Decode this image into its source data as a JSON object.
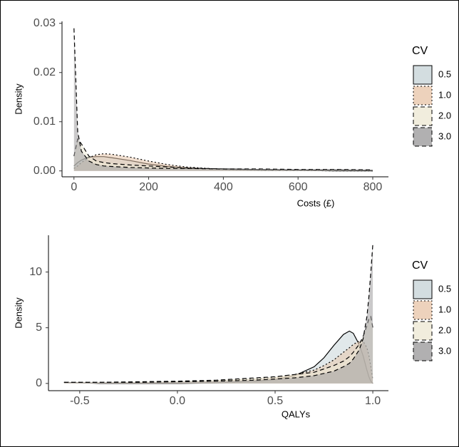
{
  "chart_data": [
    {
      "type": "density",
      "x_label": "Costs (£)",
      "y_label": "Density",
      "legend_title": "CV",
      "x": [
        0,
        10,
        20,
        40,
        60,
        80,
        100,
        150,
        200,
        250,
        300,
        400,
        500,
        600,
        700,
        800
      ],
      "series": [
        {
          "name": "0.5",
          "color": "#c8d5d8",
          "dash": "solid",
          "values": [
            0.001,
            0.0017,
            0.0022,
            0.0028,
            0.0029,
            0.0029,
            0.0027,
            0.0021,
            0.0014,
            0.0009,
            0.0006,
            0.0003,
            0.0001,
            0.0001,
            0,
            0
          ]
        },
        {
          "name": "1.0",
          "color": "#e8c7ab",
          "dash": "dotted",
          "values": [
            0.0005,
            0.001,
            0.0017,
            0.0027,
            0.0033,
            0.0035,
            0.0034,
            0.0028,
            0.002,
            0.0013,
            0.0008,
            0.0003,
            0.0001,
            0.0001,
            0,
            0
          ]
        },
        {
          "name": "2.0",
          "color": "#ede9d5",
          "dash": "dashed",
          "values": [
            0.003,
            0.0065,
            0.0055,
            0.003,
            0.002,
            0.0017,
            0.0015,
            0.0012,
            0.001,
            0.0008,
            0.0006,
            0.0004,
            0.0003,
            0.0002,
            0.0002,
            0.0001
          ]
        },
        {
          "name": "3.0",
          "color": "#9e9c9e",
          "dash": "dashed",
          "values": [
            0.029,
            0.008,
            0.004,
            0.002,
            0.0013,
            0.001,
            0.0009,
            0.0007,
            0.0006,
            0.0005,
            0.0005,
            0.0004,
            0.0004,
            0.0003,
            0.0003,
            0.0002
          ]
        }
      ],
      "xlim": [
        -32,
        842
      ],
      "xticks": [
        0,
        200,
        400,
        600,
        800
      ],
      "ylim": [
        -0.0012,
        0.0304
      ],
      "yticks": [
        {
          "value": 0,
          "label": "0.00"
        },
        0.01,
        0.02,
        0.03
      ]
    },
    {
      "type": "density",
      "x_label": "QALYs",
      "y_label": "Density",
      "legend_title": "CV",
      "x": [
        -0.58,
        -0.4,
        -0.2,
        0,
        0.2,
        0.4,
        0.5,
        0.6,
        0.7,
        0.75,
        0.8,
        0.85,
        0.88,
        0.9,
        0.93,
        0.95,
        0.97,
        0.98,
        0.99,
        1.0
      ],
      "series": [
        {
          "name": "0.5",
          "color": "#c8d5d8",
          "dash": "solid",
          "values": [
            0.1,
            0,
            0,
            0,
            0.05,
            0.2,
            0.35,
            0.7,
            1.5,
            2.3,
            3.4,
            4.4,
            4.7,
            4.5,
            3.5,
            2.5,
            1.2,
            0.6,
            0.2,
            0
          ]
        },
        {
          "name": "1.0",
          "color": "#e8c7ab",
          "dash": "dotted",
          "values": [
            0.1,
            0.1,
            0.1,
            0.15,
            0.25,
            0.4,
            0.55,
            0.8,
            1.2,
            1.6,
            2.1,
            2.8,
            3.2,
            3.5,
            3.8,
            3.8,
            3.2,
            2.5,
            1.5,
            0.3
          ]
        },
        {
          "name": "2.0",
          "color": "#ede9d5",
          "dash": "dashed",
          "values": [
            0.1,
            0.1,
            0.15,
            0.2,
            0.3,
            0.5,
            0.6,
            0.8,
            1.0,
            1.3,
            1.6,
            2.0,
            2.4,
            2.8,
            3.5,
            4.2,
            5.2,
            5.8,
            6.0,
            5.0
          ]
        },
        {
          "name": "3.0",
          "color": "#9e9c9e",
          "dash": "dashed",
          "values": [
            0.1,
            0.1,
            0.1,
            0.15,
            0.2,
            0.3,
            0.4,
            0.5,
            0.7,
            0.9,
            1.1,
            1.5,
            1.8,
            2.2,
            3.0,
            4.0,
            6.0,
            7.8,
            10,
            12.5
          ]
        }
      ],
      "xlim": [
        -0.66,
        1.08
      ],
      "xticks": [
        -0.5,
        {
          "value": 0,
          "label": "0.0"
        },
        0.5,
        {
          "value": 1,
          "label": "1.0"
        }
      ],
      "ylim": [
        -0.65,
        13.3
      ],
      "yticks": [
        0,
        5,
        10
      ]
    }
  ]
}
